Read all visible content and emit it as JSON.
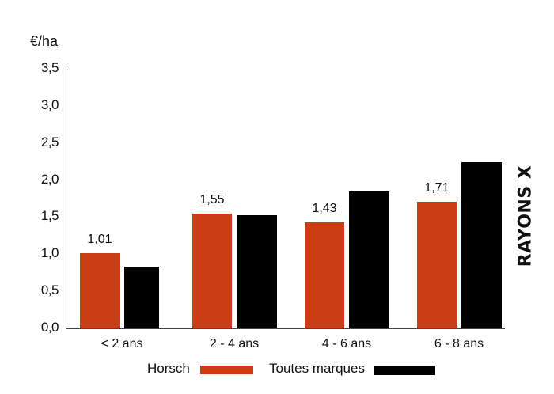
{
  "chart_data": {
    "type": "bar",
    "title": "",
    "xlabel": "",
    "ylabel": "€/ha",
    "ylim": [
      0,
      3.5
    ],
    "yticks": [
      "0,0",
      "0,5",
      "1,0",
      "1,5",
      "2,0",
      "2,5",
      "3,0",
      "3,5"
    ],
    "grid": false,
    "legend_position": "bottom",
    "categories": [
      "< 2 ans",
      "2 - 4 ans",
      "4 - 6 ans",
      "6 - 8 ans"
    ],
    "series": [
      {
        "name": "Horsch",
        "color": "#c93e17",
        "values": [
          1.01,
          1.55,
          1.43,
          1.71
        ],
        "labels": [
          "1,01",
          "1,55",
          "1,43",
          "1,71"
        ]
      },
      {
        "name": "Toutes marques",
        "color": "#000000",
        "values": [
          0.83,
          1.53,
          1.85,
          2.24
        ]
      }
    ]
  },
  "brand": "RAYONS X"
}
